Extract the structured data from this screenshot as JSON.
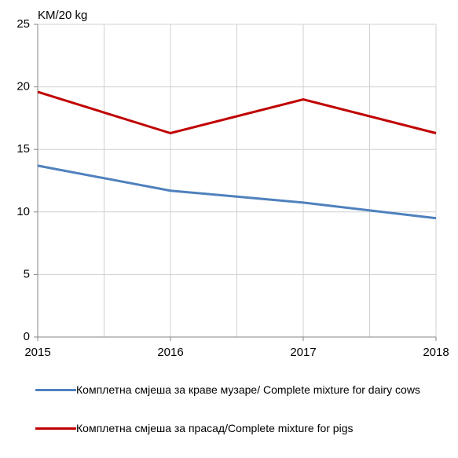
{
  "chart_data": {
    "type": "line",
    "y_axis_label": "KM/20 kg",
    "x": [
      2015,
      2016,
      2017,
      2018
    ],
    "xlim": [
      2015,
      2018
    ],
    "xticks": [
      2015,
      2016,
      2017,
      2018
    ],
    "ylim": [
      0,
      25
    ],
    "yticks": [
      0,
      5,
      10,
      15,
      20,
      25
    ],
    "grid": true,
    "series": [
      {
        "name": "Комплетна смјеша за краве музаре/ Complete mixture for dairy cows",
        "color": "#4f81bd",
        "values": [
          13.7,
          11.7,
          10.75,
          9.5
        ]
      },
      {
        "name": "Комплетна смјеша за прасад/Complete mixture for pigs",
        "color": "#c00000",
        "values": [
          19.6,
          16.3,
          19.0,
          16.3
        ]
      }
    ]
  }
}
